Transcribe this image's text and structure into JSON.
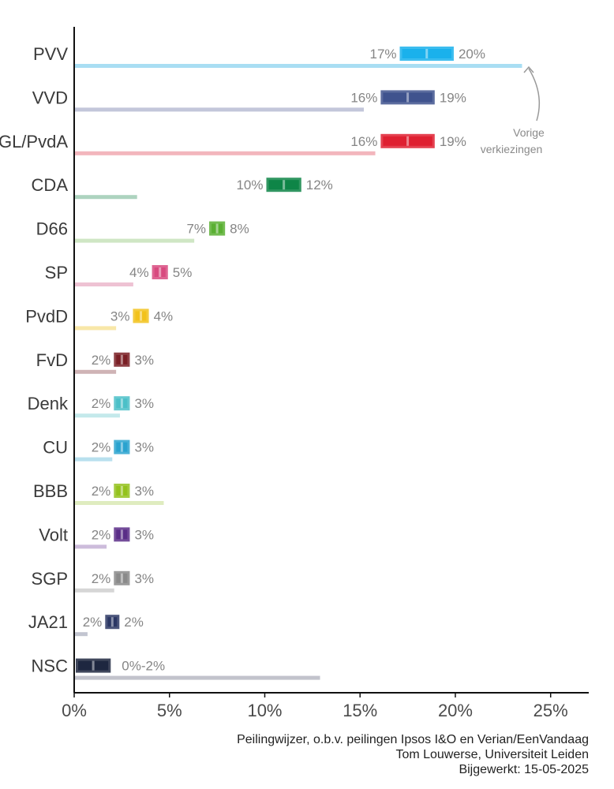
{
  "chart_data": {
    "type": "bar",
    "parties": [
      {
        "name": "PVV",
        "low": 17,
        "high": 20,
        "low_label": "17%",
        "high_label": "20%",
        "previous": 23.5,
        "color": "#1ab1ec",
        "prev_color": "#a9def3"
      },
      {
        "name": "VVD",
        "low": 16,
        "high": 19,
        "low_label": "16%",
        "high_label": "19%",
        "previous": 15.2,
        "color": "#3f538e",
        "prev_color": "#c3c6da"
      },
      {
        "name": "GL/PvdA",
        "low": 16,
        "high": 19,
        "low_label": "16%",
        "high_label": "19%",
        "previous": 15.8,
        "color": "#df2031",
        "prev_color": "#f3b6bd"
      },
      {
        "name": "CDA",
        "low": 10,
        "high": 12,
        "low_label": "10%",
        "high_label": "12%",
        "previous": 3.3,
        "color": "#0e8547",
        "prev_color": "#add3bf"
      },
      {
        "name": "D66",
        "low": 7,
        "high": 8,
        "low_label": "7%",
        "high_label": "8%",
        "previous": 6.3,
        "color": "#5ab033",
        "prev_color": "#cfe6c4"
      },
      {
        "name": "SP",
        "low": 4,
        "high": 5,
        "low_label": "4%",
        "high_label": "5%",
        "previous": 3.1,
        "color": "#d84a7f",
        "prev_color": "#eec2d3"
      },
      {
        "name": "PvdD",
        "low": 3,
        "high": 4,
        "low_label": "3%",
        "high_label": "4%",
        "previous": 2.2,
        "color": "#f2c21b",
        "prev_color": "#f8e7a8"
      },
      {
        "name": "FvD",
        "low": 2,
        "high": 3,
        "low_label": "2%",
        "high_label": "3%",
        "previous": 2.2,
        "color": "#7a1f25",
        "prev_color": "#cfb3b5"
      },
      {
        "name": "Denk",
        "low": 2,
        "high": 3,
        "low_label": "2%",
        "high_label": "3%",
        "previous": 2.4,
        "color": "#4bc0c8",
        "prev_color": "#c4e9eb"
      },
      {
        "name": "CU",
        "low": 2,
        "high": 3,
        "low_label": "2%",
        "high_label": "3%",
        "previous": 2.0,
        "color": "#2aa3cf",
        "prev_color": "#b8e0ee"
      },
      {
        "name": "BBB",
        "low": 2,
        "high": 3,
        "low_label": "2%",
        "high_label": "3%",
        "previous": 4.7,
        "color": "#94c21d",
        "prev_color": "#dfecbf"
      },
      {
        "name": "Volt",
        "low": 2,
        "high": 3,
        "low_label": "2%",
        "high_label": "3%",
        "previous": 1.7,
        "color": "#5a2d87",
        "prev_color": "#cdbcdb"
      },
      {
        "name": "SGP",
        "low": 2,
        "high": 3,
        "low_label": "2%",
        "high_label": "3%",
        "previous": 2.1,
        "color": "#8a8a8a",
        "prev_color": "#d6d6d6"
      },
      {
        "name": "JA21",
        "low": 2,
        "high": 2,
        "low_label": "2%",
        "high_label": "2%",
        "previous": 0.7,
        "color": "#2b3764",
        "prev_color": "#c2c5d0"
      },
      {
        "name": "NSC",
        "low": 0,
        "high": 2,
        "range_label": "0%-2%",
        "previous": 12.9,
        "color": "#1e2740",
        "prev_color": "#c2c3cc"
      }
    ],
    "x_ticks": [
      "0%",
      "5%",
      "10%",
      "15%",
      "20%",
      "25%"
    ],
    "x_tick_values": [
      0,
      5,
      10,
      15,
      20,
      25
    ],
    "xlim": [
      0,
      27
    ],
    "annotation": {
      "line1": "Vorige",
      "line2": "verkiezingen"
    },
    "grid": false
  },
  "footer": {
    "line1": "Peilingwijzer, o.b.v. peilingen Ipsos I&O en Verian/EenVandaag",
    "line2": "Tom Louwerse, Universiteit Leiden",
    "line3": "Bijgewerkt: 15-05-2025"
  }
}
